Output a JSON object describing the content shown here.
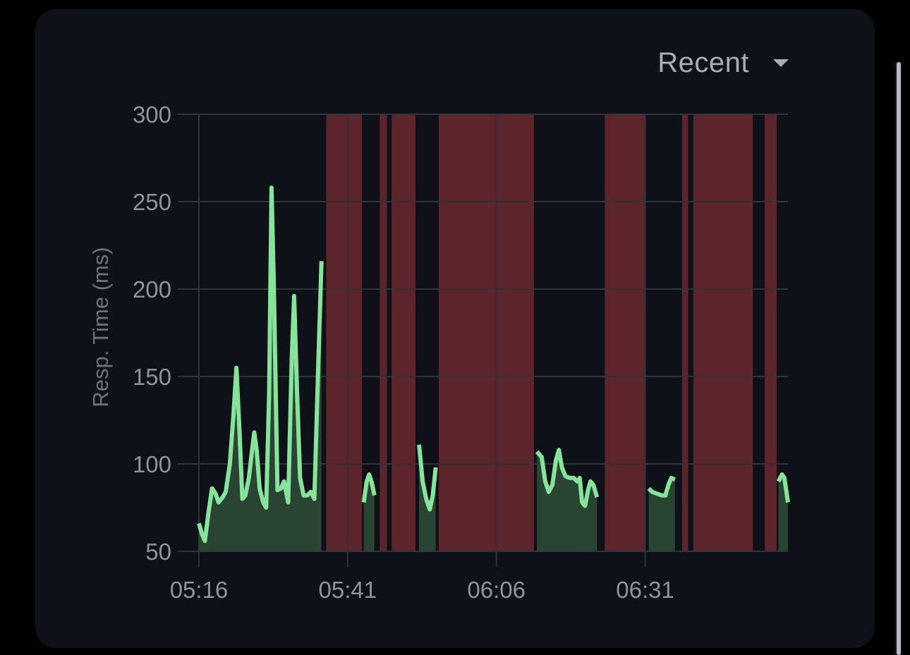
{
  "dropdown": {
    "label": "Recent",
    "icon": "caret-down-icon"
  },
  "colors": {
    "background": "#0e1117",
    "line": "#86e39a",
    "fill": "#2a4434",
    "outage": "#5c242b",
    "grid": "#2f333a",
    "tick_text": "#8f949b"
  },
  "chart_data": {
    "type": "area",
    "title": "",
    "xlabel": "",
    "ylabel": "Resp. Time (ms)",
    "ylim": [
      50,
      300
    ],
    "yticks": [
      50,
      100,
      150,
      200,
      250,
      300
    ],
    "xlim": [
      "05:16",
      "06:55"
    ],
    "xticks": [
      "05:16",
      "05:41",
      "06:06",
      "06:31"
    ],
    "grid": true,
    "legend": "none",
    "outages": [
      {
        "start": "05:37.4",
        "end": "05:43.4"
      },
      {
        "start": "05:46.4",
        "end": "05:47.6"
      },
      {
        "start": "05:48.4",
        "end": "05:52.4"
      },
      {
        "start": "05:56.3",
        "end": "06:12.3"
      },
      {
        "start": "06:24.2",
        "end": "06:31.1"
      },
      {
        "start": "06:37.2",
        "end": "06:38.2"
      },
      {
        "start": "06:39.1",
        "end": "06:49.1"
      },
      {
        "start": "06:51.1",
        "end": "06:53.1"
      }
    ],
    "series": [
      {
        "segments": [
          [
            {
              "x": "05:16.0",
              "y": 66
            },
            {
              "x": "05:16.5",
              "y": 60
            },
            {
              "x": "05:17.0",
              "y": 56
            },
            {
              "x": "05:17.6",
              "y": 72
            },
            {
              "x": "05:18.2",
              "y": 86
            },
            {
              "x": "05:18.8",
              "y": 83
            },
            {
              "x": "05:19.3",
              "y": 78
            },
            {
              "x": "05:20.0",
              "y": 81
            },
            {
              "x": "05:20.5",
              "y": 84
            },
            {
              "x": "05:21.2",
              "y": 100
            },
            {
              "x": "05:21.8",
              "y": 128
            },
            {
              "x": "05:22.3",
              "y": 155
            },
            {
              "x": "05:22.8",
              "y": 120
            },
            {
              "x": "05:23.3",
              "y": 80
            },
            {
              "x": "05:23.8",
              "y": 82
            },
            {
              "x": "05:24.4",
              "y": 92
            },
            {
              "x": "05:24.9",
              "y": 107
            },
            {
              "x": "05:25.3",
              "y": 118
            },
            {
              "x": "05:25.7",
              "y": 108
            },
            {
              "x": "05:26.2",
              "y": 86
            },
            {
              "x": "05:26.8",
              "y": 78
            },
            {
              "x": "05:27.3",
              "y": 75
            },
            {
              "x": "05:27.8",
              "y": 140
            },
            {
              "x": "05:28.2",
              "y": 258
            },
            {
              "x": "05:28.6",
              "y": 200
            },
            {
              "x": "05:29.2",
              "y": 85
            },
            {
              "x": "05:29.8",
              "y": 86
            },
            {
              "x": "05:30.3",
              "y": 90
            },
            {
              "x": "05:31.0",
              "y": 78
            },
            {
              "x": "05:31.6",
              "y": 160
            },
            {
              "x": "05:32.0",
              "y": 196
            },
            {
              "x": "05:32.5",
              "y": 140
            },
            {
              "x": "05:33.0",
              "y": 92
            },
            {
              "x": "05:33.6",
              "y": 82
            },
            {
              "x": "05:34.2",
              "y": 82
            },
            {
              "x": "05:34.8",
              "y": 84
            },
            {
              "x": "05:35.4",
              "y": 80
            },
            {
              "x": "05:36.0",
              "y": 150
            },
            {
              "x": "05:36.6",
              "y": 216
            }
          ],
          [
            {
              "x": "05:43.7",
              "y": 78
            },
            {
              "x": "05:44.2",
              "y": 90
            },
            {
              "x": "05:44.6",
              "y": 94
            },
            {
              "x": "05:45.0",
              "y": 90
            },
            {
              "x": "05:45.5",
              "y": 82
            }
          ],
          [
            {
              "x": "05:53.0",
              "y": 111
            },
            {
              "x": "05:53.6",
              "y": 90
            },
            {
              "x": "05:54.2",
              "y": 80
            },
            {
              "x": "05:54.8",
              "y": 74
            },
            {
              "x": "05:55.3",
              "y": 82
            },
            {
              "x": "05:55.8",
              "y": 98
            }
          ],
          [
            {
              "x": "06:12.8",
              "y": 107
            },
            {
              "x": "06:13.6",
              "y": 104
            },
            {
              "x": "06:14.2",
              "y": 90
            },
            {
              "x": "06:14.8",
              "y": 84
            },
            {
              "x": "06:15.4",
              "y": 88
            },
            {
              "x": "06:16.0",
              "y": 102
            },
            {
              "x": "06:16.5",
              "y": 108
            },
            {
              "x": "06:17.0",
              "y": 98
            },
            {
              "x": "06:17.6",
              "y": 93
            },
            {
              "x": "06:18.3",
              "y": 92
            },
            {
              "x": "06:19.0",
              "y": 92
            },
            {
              "x": "06:19.6",
              "y": 90
            },
            {
              "x": "06:20.0",
              "y": 92
            },
            {
              "x": "06:20.4",
              "y": 78
            },
            {
              "x": "06:20.9",
              "y": 76
            },
            {
              "x": "06:21.4",
              "y": 85
            },
            {
              "x": "06:21.8",
              "y": 90
            },
            {
              "x": "06:22.3",
              "y": 88
            },
            {
              "x": "06:22.9",
              "y": 81
            }
          ],
          [
            {
              "x": "06:31.6",
              "y": 86
            },
            {
              "x": "06:32.2",
              "y": 84
            },
            {
              "x": "06:33.0",
              "y": 83
            },
            {
              "x": "06:33.8",
              "y": 82
            },
            {
              "x": "06:34.4",
              "y": 82
            },
            {
              "x": "06:34.9",
              "y": 88
            },
            {
              "x": "06:35.4",
              "y": 92
            },
            {
              "x": "06:36.0",
              "y": 91
            }
          ],
          [
            {
              "x": "06:53.4",
              "y": 90
            },
            {
              "x": "06:54.0",
              "y": 94
            },
            {
              "x": "06:54.4",
              "y": 92
            },
            {
              "x": "06:55.0",
              "y": 78
            }
          ]
        ]
      }
    ]
  }
}
